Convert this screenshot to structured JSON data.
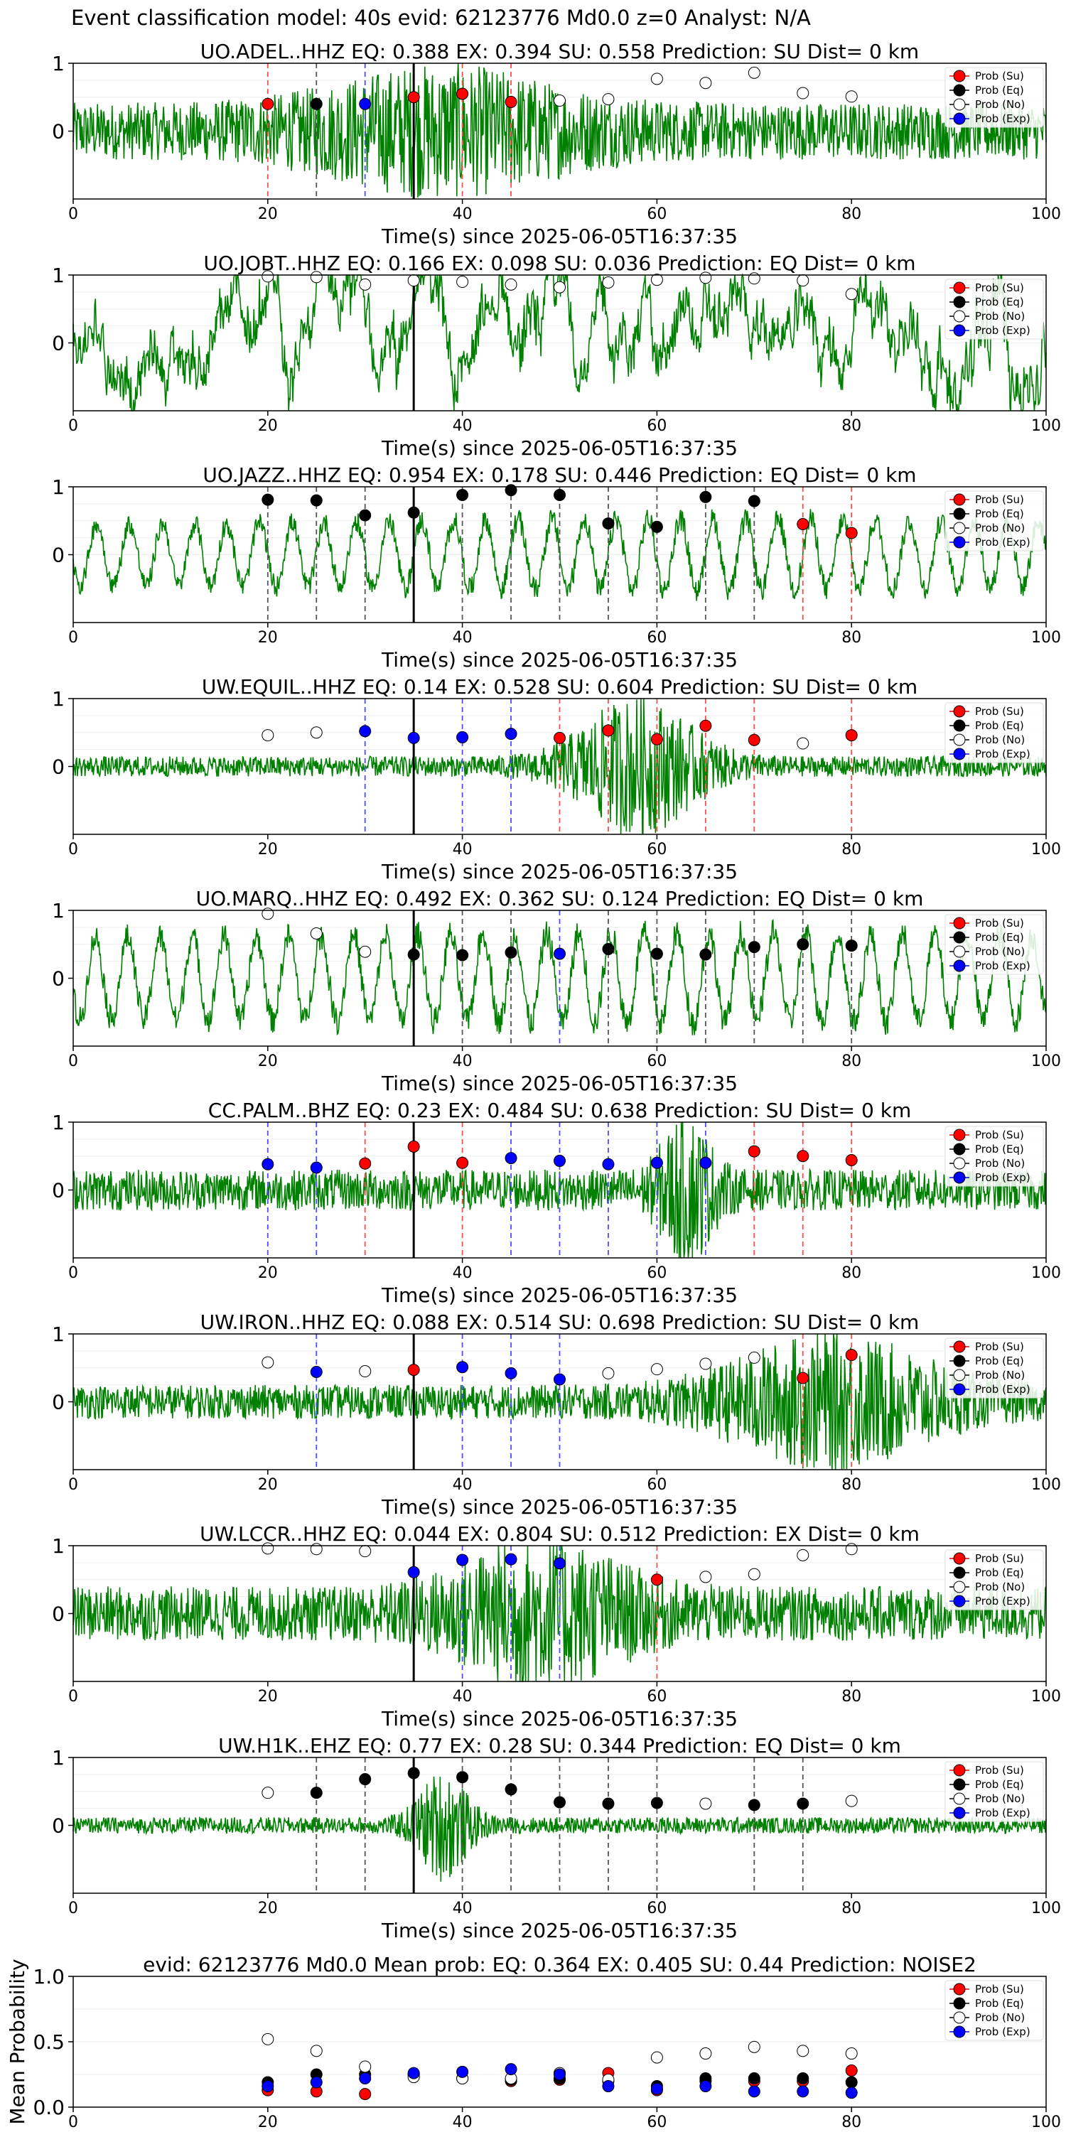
{
  "suptitle": "Event classification model: 40s evid: 62123776 Md0.0 z=0 Analyst: N/A",
  "colors": {
    "su": "#ff0000",
    "eq": "#000000",
    "no": "#ffffff",
    "exp": "#0000ff",
    "wave": "#008000",
    "su_line": "#ff4d4d",
    "eq_line": "#555555",
    "exp_line": "#4d4dff"
  },
  "legend_labels": [
    "Prob (Su)",
    "Prob (Eq)",
    "Prob (No)",
    "Prob (Exp)"
  ],
  "chart_data": [
    {
      "type": "scatter",
      "station": "UO.ADEL..HHZ",
      "title": "UO.ADEL..HHZ   EQ: 0.388  EX: 0.394  SU: 0.558   Prediction: SU    Dist= 0 km",
      "xlabel": "Time(s) since 2025-06-05T16:37:35",
      "xlim": [
        0,
        100
      ],
      "xticks": [
        0,
        20,
        40,
        60,
        80,
        100
      ],
      "yticks": [
        0,
        1
      ],
      "ylim": [
        -1,
        1
      ],
      "grid": true,
      "legend_position": "upper right",
      "waveform": {
        "amp": 0.42,
        "style": "noisy",
        "burst_center": 38,
        "burst_width": 14,
        "burst_gain": 1.4
      },
      "windows": [
        {
          "t": 20,
          "c": "su",
          "p": 0.4
        },
        {
          "t": 25,
          "c": "eq",
          "p": 0.4
        },
        {
          "t": 30,
          "c": "exp",
          "p": 0.4
        },
        {
          "t": 35,
          "c": "su",
          "p": 0.5
        },
        {
          "t": 40,
          "c": "su",
          "p": 0.55
        },
        {
          "t": 45,
          "c": "su",
          "p": 0.43
        },
        {
          "t": 50,
          "c": "no",
          "p": 0.45
        },
        {
          "t": 55,
          "c": "no",
          "p": 0.47
        },
        {
          "t": 60,
          "c": "no",
          "p": 0.77
        },
        {
          "t": 65,
          "c": "no",
          "p": 0.71
        },
        {
          "t": 70,
          "c": "no",
          "p": 0.86
        },
        {
          "t": 75,
          "c": "no",
          "p": 0.56
        },
        {
          "t": 80,
          "c": "no",
          "p": 0.51
        }
      ]
    },
    {
      "type": "scatter",
      "station": "UO.JOBT..HHZ",
      "title": "UO.JOBT..HHZ  EQ: 0.166  EX: 0.098  SU: 0.036   Prediction: EQ    Dist= 0 km",
      "xlabel": "Time(s) since 2025-06-05T16:37:35",
      "xlim": [
        0,
        100
      ],
      "xticks": [
        0,
        20,
        40,
        60,
        80,
        100
      ],
      "yticks": [
        0,
        1
      ],
      "ylim": [
        -1,
        1
      ],
      "grid": true,
      "legend_position": "upper right",
      "waveform": {
        "amp": 0.85,
        "style": "wander",
        "burst_center": 95,
        "burst_width": 6,
        "burst_gain": 0.3
      },
      "windows": [
        {
          "t": 20,
          "c": "no",
          "p": 0.98
        },
        {
          "t": 25,
          "c": "no",
          "p": 0.97
        },
        {
          "t": 30,
          "c": "no",
          "p": 0.86
        },
        {
          "t": 35,
          "c": "no",
          "p": 0.92
        },
        {
          "t": 40,
          "c": "no",
          "p": 0.9
        },
        {
          "t": 45,
          "c": "no",
          "p": 0.86
        },
        {
          "t": 50,
          "c": "no",
          "p": 0.82
        },
        {
          "t": 55,
          "c": "no",
          "p": 0.89
        },
        {
          "t": 60,
          "c": "no",
          "p": 0.93
        },
        {
          "t": 65,
          "c": "no",
          "p": 0.96
        },
        {
          "t": 70,
          "c": "no",
          "p": 0.95
        },
        {
          "t": 75,
          "c": "no",
          "p": 0.92
        },
        {
          "t": 80,
          "c": "no",
          "p": 0.72
        }
      ]
    },
    {
      "type": "scatter",
      "station": "UO.JAZZ..HHZ",
      "title": "UO.JAZZ..HHZ   EQ: 0.954  EX: 0.178  SU: 0.446   Prediction: EQ    Dist= 0 km",
      "xlabel": "Time(s) since 2025-06-05T16:37:35",
      "xlim": [
        0,
        100
      ],
      "xticks": [
        0,
        20,
        40,
        60,
        80,
        100
      ],
      "yticks": [
        0,
        1
      ],
      "ylim": [
        -1,
        1
      ],
      "grid": true,
      "legend_position": "upper right",
      "waveform": {
        "amp": 0.55,
        "style": "oscillate",
        "burst_center": 60,
        "burst_width": 40,
        "burst_gain": 0.2
      },
      "windows": [
        {
          "t": 20,
          "c": "eq",
          "p": 0.81
        },
        {
          "t": 25,
          "c": "eq",
          "p": 0.8
        },
        {
          "t": 30,
          "c": "eq",
          "p": 0.58
        },
        {
          "t": 35,
          "c": "eq",
          "p": 0.62
        },
        {
          "t": 40,
          "c": "eq",
          "p": 0.88
        },
        {
          "t": 45,
          "c": "eq",
          "p": 0.95
        },
        {
          "t": 50,
          "c": "eq",
          "p": 0.88
        },
        {
          "t": 55,
          "c": "eq",
          "p": 0.46
        },
        {
          "t": 60,
          "c": "eq",
          "p": 0.41
        },
        {
          "t": 65,
          "c": "eq",
          "p": 0.85
        },
        {
          "t": 70,
          "c": "eq",
          "p": 0.79
        },
        {
          "t": 75,
          "c": "su",
          "p": 0.45
        },
        {
          "t": 80,
          "c": "su",
          "p": 0.32
        }
      ]
    },
    {
      "type": "scatter",
      "station": "UW.EQUIL..HHZ",
      "title": "UW.EQUIL..HHZ   EQ: 0.14  EX: 0.528  SU: 0.604   Prediction: SU    Dist= 0 km",
      "xlabel": "Time(s) since 2025-06-05T16:37:35",
      "xlim": [
        0,
        100
      ],
      "xticks": [
        0,
        20,
        40,
        60,
        80,
        100
      ],
      "yticks": [
        0,
        1
      ],
      "ylim": [
        -1,
        1
      ],
      "grid": true,
      "legend_position": "upper right",
      "waveform": {
        "amp": 0.15,
        "style": "noisy",
        "burst_center": 58,
        "burst_width": 7,
        "burst_gain": 6.0
      },
      "windows": [
        {
          "t": 20,
          "c": "no",
          "p": 0.46
        },
        {
          "t": 25,
          "c": "no",
          "p": 0.5
        },
        {
          "t": 30,
          "c": "exp",
          "p": 0.52
        },
        {
          "t": 35,
          "c": "exp",
          "p": 0.42
        },
        {
          "t": 40,
          "c": "exp",
          "p": 0.43
        },
        {
          "t": 45,
          "c": "exp",
          "p": 0.48
        },
        {
          "t": 50,
          "c": "su",
          "p": 0.42
        },
        {
          "t": 55,
          "c": "su",
          "p": 0.53
        },
        {
          "t": 60,
          "c": "su",
          "p": 0.4
        },
        {
          "t": 65,
          "c": "su",
          "p": 0.6
        },
        {
          "t": 70,
          "c": "su",
          "p": 0.39
        },
        {
          "t": 75,
          "c": "no",
          "p": 0.34
        },
        {
          "t": 80,
          "c": "su",
          "p": 0.46
        }
      ]
    },
    {
      "type": "scatter",
      "station": "UO.MARQ..HHZ",
      "title": "UO.MARQ..HHZ   EQ: 0.492  EX: 0.362  SU: 0.124   Prediction: EQ    Dist= 0 km",
      "xlabel": "Time(s) since 2025-06-05T16:37:35",
      "xlim": [
        0,
        100
      ],
      "xticks": [
        0,
        20,
        40,
        60,
        80,
        100
      ],
      "yticks": [
        0,
        1
      ],
      "ylim": [
        -1,
        1
      ],
      "grid": true,
      "legend_position": "upper right",
      "waveform": {
        "amp": 0.75,
        "style": "oscillate",
        "burst_center": 60,
        "burst_width": 40,
        "burst_gain": 0.1
      },
      "windows": [
        {
          "t": 20,
          "c": "no",
          "p": 0.95
        },
        {
          "t": 25,
          "c": "no",
          "p": 0.66
        },
        {
          "t": 30,
          "c": "no",
          "p": 0.39
        },
        {
          "t": 35,
          "c": "eq",
          "p": 0.35
        },
        {
          "t": 40,
          "c": "eq",
          "p": 0.34
        },
        {
          "t": 45,
          "c": "eq",
          "p": 0.38
        },
        {
          "t": 50,
          "c": "exp",
          "p": 0.36
        },
        {
          "t": 55,
          "c": "eq",
          "p": 0.43
        },
        {
          "t": 60,
          "c": "eq",
          "p": 0.36
        },
        {
          "t": 65,
          "c": "eq",
          "p": 0.35
        },
        {
          "t": 70,
          "c": "eq",
          "p": 0.46
        },
        {
          "t": 75,
          "c": "eq",
          "p": 0.5
        },
        {
          "t": 80,
          "c": "eq",
          "p": 0.48
        }
      ]
    },
    {
      "type": "scatter",
      "station": "CC.PALM..BHZ",
      "title": "CC.PALM..BHZ   EQ: 0.23  EX: 0.484  SU: 0.638   Prediction: SU    Dist= 0 km",
      "xlabel": "Time(s) since 2025-06-05T16:37:35",
      "xlim": [
        0,
        100
      ],
      "xticks": [
        0,
        20,
        40,
        60,
        80,
        100
      ],
      "yticks": [
        0,
        1
      ],
      "ylim": [
        -1,
        1
      ],
      "grid": true,
      "legend_position": "upper right",
      "waveform": {
        "amp": 0.3,
        "style": "noisy",
        "burst_center": 63,
        "burst_width": 3,
        "burst_gain": 3.0
      },
      "windows": [
        {
          "t": 20,
          "c": "exp",
          "p": 0.38
        },
        {
          "t": 25,
          "c": "exp",
          "p": 0.33
        },
        {
          "t": 30,
          "c": "su",
          "p": 0.39
        },
        {
          "t": 35,
          "c": "su",
          "p": 0.64
        },
        {
          "t": 40,
          "c": "su",
          "p": 0.4
        },
        {
          "t": 45,
          "c": "exp",
          "p": 0.47
        },
        {
          "t": 50,
          "c": "exp",
          "p": 0.43
        },
        {
          "t": 55,
          "c": "exp",
          "p": 0.38
        },
        {
          "t": 60,
          "c": "exp",
          "p": 0.4
        },
        {
          "t": 65,
          "c": "exp",
          "p": 0.4
        },
        {
          "t": 70,
          "c": "su",
          "p": 0.57
        },
        {
          "t": 75,
          "c": "su",
          "p": 0.5
        },
        {
          "t": 80,
          "c": "su",
          "p": 0.44
        }
      ]
    },
    {
      "type": "scatter",
      "station": "UW.IRON..HHZ",
      "title": "UW.IRON..HHZ   EQ: 0.088  EX: 0.514  SU: 0.698   Prediction: SU    Dist= 0 km",
      "xlabel": "Time(s) since 2025-06-05T16:37:35",
      "xlim": [
        0,
        100
      ],
      "xticks": [
        0,
        20,
        40,
        60,
        80,
        100
      ],
      "yticks": [
        0,
        1
      ],
      "ylim": [
        -1,
        1
      ],
      "grid": true,
      "legend_position": "upper right",
      "waveform": {
        "amp": 0.25,
        "style": "noisy",
        "burst_center": 78,
        "burst_width": 12,
        "burst_gain": 3.2
      },
      "windows": [
        {
          "t": 20,
          "c": "no",
          "p": 0.58
        },
        {
          "t": 25,
          "c": "exp",
          "p": 0.44
        },
        {
          "t": 30,
          "c": "no",
          "p": 0.45
        },
        {
          "t": 35,
          "c": "su",
          "p": 0.47
        },
        {
          "t": 40,
          "c": "exp",
          "p": 0.51
        },
        {
          "t": 45,
          "c": "exp",
          "p": 0.42
        },
        {
          "t": 50,
          "c": "exp",
          "p": 0.33
        },
        {
          "t": 55,
          "c": "no",
          "p": 0.42
        },
        {
          "t": 60,
          "c": "no",
          "p": 0.48
        },
        {
          "t": 65,
          "c": "no",
          "p": 0.56
        },
        {
          "t": 70,
          "c": "no",
          "p": 0.65
        },
        {
          "t": 75,
          "c": "su",
          "p": 0.35
        },
        {
          "t": 80,
          "c": "su",
          "p": 0.69
        }
      ]
    },
    {
      "type": "scatter",
      "station": "UW.LCCR..HHZ",
      "title": "UW.LCCR..HHZ   EQ: 0.044  EX: 0.804  SU: 0.512   Prediction: EX    Dist= 0 km",
      "xlabel": "Time(s) since 2025-06-05T16:37:35",
      "xlim": [
        0,
        100
      ],
      "xticks": [
        0,
        20,
        40,
        60,
        80,
        100
      ],
      "yticks": [
        0,
        1
      ],
      "ylim": [
        -1,
        1
      ],
      "grid": true,
      "legend_position": "upper right",
      "waveform": {
        "amp": 0.4,
        "style": "noisy",
        "burst_center": 48,
        "burst_width": 10,
        "burst_gain": 2.0
      },
      "windows": [
        {
          "t": 20,
          "c": "no",
          "p": 0.96
        },
        {
          "t": 25,
          "c": "no",
          "p": 0.95
        },
        {
          "t": 30,
          "c": "no",
          "p": 0.92
        },
        {
          "t": 35,
          "c": "exp",
          "p": 0.61
        },
        {
          "t": 40,
          "c": "exp",
          "p": 0.79
        },
        {
          "t": 45,
          "c": "exp",
          "p": 0.8
        },
        {
          "t": 50,
          "c": "exp",
          "p": 0.74
        },
        {
          "t": 60,
          "c": "su",
          "p": 0.5
        },
        {
          "t": 65,
          "c": "no",
          "p": 0.54
        },
        {
          "t": 70,
          "c": "no",
          "p": 0.58
        },
        {
          "t": 75,
          "c": "no",
          "p": 0.86
        },
        {
          "t": 80,
          "c": "no",
          "p": 0.95
        }
      ]
    },
    {
      "type": "scatter",
      "station": "UW.H1K..EHZ",
      "title": "UW.H1K..EHZ   EQ: 0.77  EX: 0.28  SU: 0.344   Prediction: EQ    Dist= 0 km",
      "xlabel": "Time(s) since 2025-06-05T16:37:35",
      "xlim": [
        0,
        100
      ],
      "xticks": [
        0,
        20,
        40,
        60,
        80,
        100
      ],
      "yticks": [
        0,
        1
      ],
      "ylim": [
        -1,
        1
      ],
      "grid": true,
      "legend_position": "upper right",
      "waveform": {
        "amp": 0.12,
        "style": "noisy",
        "burst_center": 38,
        "burst_width": 3,
        "burst_gain": 6.0
      },
      "windows": [
        {
          "t": 20,
          "c": "no",
          "p": 0.48
        },
        {
          "t": 25,
          "c": "eq",
          "p": 0.48
        },
        {
          "t": 30,
          "c": "eq",
          "p": 0.68
        },
        {
          "t": 35,
          "c": "eq",
          "p": 0.77
        },
        {
          "t": 40,
          "c": "eq",
          "p": 0.71
        },
        {
          "t": 45,
          "c": "eq",
          "p": 0.53
        },
        {
          "t": 50,
          "c": "eq",
          "p": 0.34
        },
        {
          "t": 55,
          "c": "eq",
          "p": 0.32
        },
        {
          "t": 60,
          "c": "eq",
          "p": 0.33
        },
        {
          "t": 65,
          "c": "no",
          "p": 0.32
        },
        {
          "t": 70,
          "c": "eq",
          "p": 0.3
        },
        {
          "t": 75,
          "c": "eq",
          "p": 0.32
        },
        {
          "t": 80,
          "c": "no",
          "p": 0.36
        }
      ]
    },
    {
      "type": "scatter",
      "title": "evid: 62123776  Md0.0   Mean prob:   EQ: 0.364  EX: 0.405  SU: 0.44   Prediction: NOISE2",
      "ylabel": "Mean Probability",
      "xlim": [
        0,
        100
      ],
      "xticks": [
        0,
        20,
        40,
        60,
        80,
        100
      ],
      "ylim": [
        0,
        1
      ],
      "yticks": [
        "0.0",
        "0.5",
        "1.0"
      ],
      "grid": true,
      "legend_position": "upper right",
      "x": [
        20,
        25,
        30,
        35,
        40,
        45,
        50,
        55,
        60,
        65,
        70,
        75,
        80
      ],
      "series": [
        {
          "name": "Prob (Su)",
          "c": "su",
          "values": [
            0.13,
            0.12,
            0.1,
            0.25,
            0.22,
            0.2,
            0.21,
            0.26,
            0.13,
            0.2,
            0.2,
            0.2,
            0.28
          ]
        },
        {
          "name": "Prob (Eq)",
          "c": "eq",
          "values": [
            0.19,
            0.25,
            0.25,
            0.25,
            0.22,
            0.21,
            0.22,
            0.2,
            0.16,
            0.22,
            0.22,
            0.22,
            0.19
          ]
        },
        {
          "name": "Prob (No)",
          "c": "no",
          "values": [
            0.52,
            0.43,
            0.31,
            0.23,
            0.22,
            0.22,
            0.26,
            0.21,
            0.38,
            0.41,
            0.46,
            0.43,
            0.41
          ]
        },
        {
          "name": "Prob (Exp)",
          "c": "exp",
          "values": [
            0.16,
            0.19,
            0.22,
            0.26,
            0.27,
            0.29,
            0.25,
            0.16,
            0.14,
            0.16,
            0.12,
            0.12,
            0.11
          ]
        }
      ]
    }
  ]
}
